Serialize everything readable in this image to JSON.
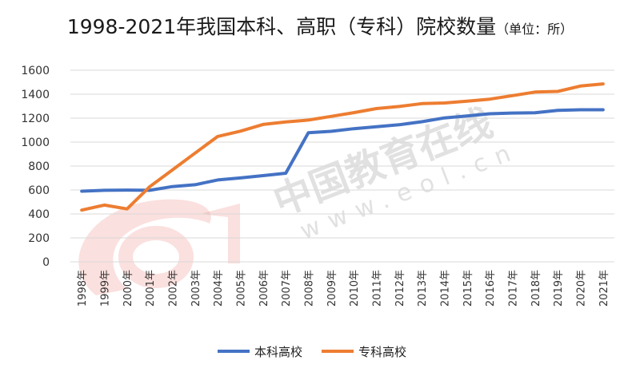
{
  "chart_data": {
    "type": "line",
    "title": "1998-2021年我国本科、高职（专科）院校数量",
    "title_unit": "（单位：所）",
    "x": [
      "1998年",
      "1999年",
      "2000年",
      "2001年",
      "2002年",
      "2003年",
      "2004年",
      "2005年",
      "2006年",
      "2007年",
      "2008年",
      "2009年",
      "2010年",
      "2011年",
      "2012年",
      "2013年",
      "2014年",
      "2015年",
      "2016年",
      "2017年",
      "2018年",
      "2019年",
      "2020年",
      "2021年"
    ],
    "ylim": [
      0,
      1600
    ],
    "yticks": [
      0,
      200,
      400,
      600,
      800,
      1000,
      1200,
      1400,
      1600
    ],
    "grid": true,
    "legend_position": "bottom",
    "series": [
      {
        "name": "本科高校",
        "color": "#4472c4",
        "values": [
          590,
          597,
          599,
          597,
          629,
          644,
          684,
          701,
          720,
          740,
          1079,
          1090,
          1112,
          1129,
          1145,
          1170,
          1202,
          1219,
          1237,
          1243,
          1245,
          1265,
          1270,
          1270
        ]
      },
      {
        "name": "专科高校",
        "color": "#ed7d31",
        "values": [
          432,
          474,
          442,
          628,
          767,
          908,
          1047,
          1091,
          1147,
          1168,
          1184,
          1215,
          1246,
          1280,
          1297,
          1321,
          1327,
          1341,
          1359,
          1388,
          1418,
          1423,
          1468,
          1486
        ]
      }
    ]
  },
  "watermark": {
    "text": "中国教育在线",
    "sub": "www.eol.cn",
    "logo_text": "eol",
    "color": "#e2554a"
  }
}
